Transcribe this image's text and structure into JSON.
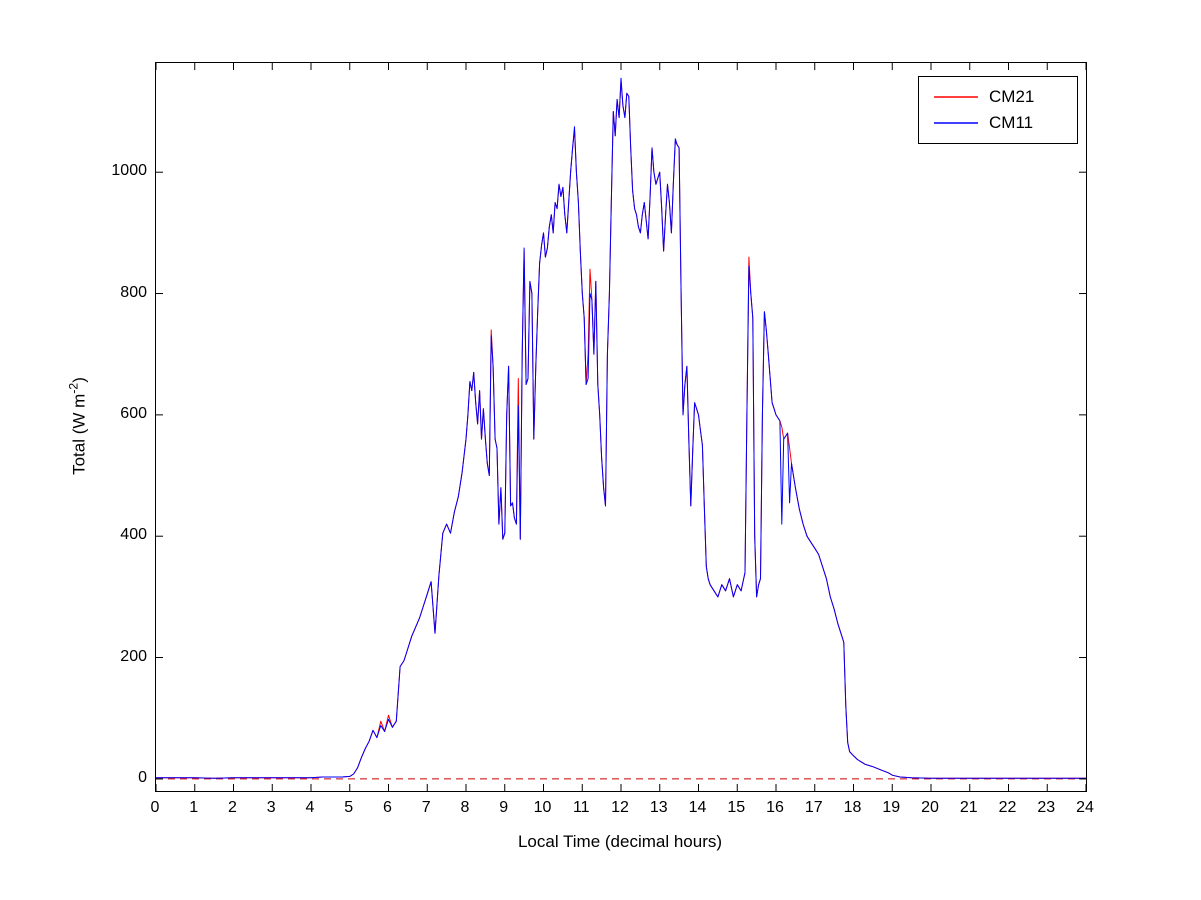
{
  "chart_data": {
    "type": "line",
    "title": "",
    "xlabel": "Local Time (decimal hours)",
    "ylabel": "Total (W m⁻²)",
    "ylabel_parts": {
      "prefix": "Total (W m",
      "sup": "-2",
      "suffix": ")"
    },
    "xlim": [
      0,
      24
    ],
    "ylim": [
      -20,
      1180
    ],
    "xticks": [
      0,
      1,
      2,
      3,
      4,
      5,
      6,
      7,
      8,
      9,
      10,
      11,
      12,
      13,
      14,
      15,
      16,
      17,
      18,
      19,
      20,
      21,
      22,
      23,
      24
    ],
    "yticks": [
      0,
      200,
      400,
      600,
      800,
      1000
    ],
    "grid": false,
    "legend_position": "top-right",
    "frame_color": "#000000",
    "x": [
      0,
      0.5,
      1,
      1.5,
      2,
      2.5,
      3,
      3.5,
      4,
      4.3,
      4.6,
      4.8,
      5,
      5.1,
      5.2,
      5.3,
      5.4,
      5.5,
      5.6,
      5.7,
      5.8,
      5.9,
      6,
      6.1,
      6.2,
      6.3,
      6.4,
      6.5,
      6.6,
      6.7,
      6.8,
      6.9,
      7,
      7.1,
      7.2,
      7.3,
      7.4,
      7.5,
      7.6,
      7.7,
      7.8,
      7.9,
      8,
      8.05,
      8.1,
      8.15,
      8.2,
      8.25,
      8.3,
      8.35,
      8.4,
      8.45,
      8.5,
      8.55,
      8.6,
      8.65,
      8.7,
      8.75,
      8.8,
      8.85,
      8.9,
      8.95,
      9,
      9.05,
      9.1,
      9.15,
      9.2,
      9.25,
      9.3,
      9.35,
      9.4,
      9.45,
      9.5,
      9.55,
      9.6,
      9.65,
      9.7,
      9.75,
      9.8,
      9.85,
      9.9,
      9.95,
      10,
      10.05,
      10.1,
      10.15,
      10.2,
      10.25,
      10.3,
      10.35,
      10.4,
      10.45,
      10.5,
      10.55,
      10.6,
      10.65,
      10.7,
      10.75,
      10.8,
      10.85,
      10.9,
      10.95,
      11,
      11.05,
      11.1,
      11.15,
      11.2,
      11.25,
      11.3,
      11.35,
      11.4,
      11.45,
      11.5,
      11.55,
      11.6,
      11.65,
      11.7,
      11.75,
      11.8,
      11.85,
      11.9,
      11.95,
      12,
      12.05,
      12.1,
      12.15,
      12.2,
      12.25,
      12.3,
      12.35,
      12.4,
      12.45,
      12.5,
      12.55,
      12.6,
      12.65,
      12.7,
      12.75,
      12.8,
      12.85,
      12.9,
      12.95,
      13,
      13.05,
      13.1,
      13.15,
      13.2,
      13.25,
      13.3,
      13.35,
      13.4,
      13.45,
      13.5,
      13.55,
      13.6,
      13.65,
      13.7,
      13.75,
      13.8,
      13.85,
      13.9,
      13.95,
      14,
      14.05,
      14.1,
      14.15,
      14.2,
      14.25,
      14.3,
      14.35,
      14.4,
      14.45,
      14.5,
      14.6,
      14.7,
      14.8,
      14.9,
      15,
      15.1,
      15.2,
      15.25,
      15.3,
      15.35,
      15.4,
      15.45,
      15.5,
      15.55,
      15.6,
      15.65,
      15.7,
      15.75,
      15.8,
      15.85,
      15.9,
      15.95,
      16,
      16.1,
      16.15,
      16.2,
      16.25,
      16.3,
      16.35,
      16.4,
      16.5,
      16.6,
      16.7,
      16.8,
      16.9,
      17,
      17.1,
      17.2,
      17.3,
      17.4,
      17.5,
      17.6,
      17.7,
      17.75,
      17.8,
      17.85,
      17.9,
      18,
      18.1,
      18.2,
      18.3,
      18.4,
      18.5,
      18.7,
      18.9,
      19,
      19.2,
      19.5,
      20,
      20.5,
      21,
      21.5,
      22,
      22.5,
      23,
      23.5,
      24
    ],
    "series": [
      {
        "name": "CM21",
        "color": "#ff0000",
        "values": [
          2,
          2,
          2,
          1,
          2,
          2,
          2,
          2,
          2,
          3,
          3,
          3,
          4,
          8,
          18,
          35,
          50,
          62,
          80,
          68,
          95,
          78,
          105,
          85,
          95,
          185,
          195,
          215,
          235,
          250,
          265,
          285,
          305,
          325,
          240,
          335,
          405,
          420,
          405,
          440,
          465,
          505,
          560,
          600,
          655,
          640,
          670,
          620,
          585,
          640,
          560,
          610,
          560,
          520,
          500,
          740,
          680,
          560,
          545,
          420,
          480,
          395,
          405,
          600,
          680,
          450,
          455,
          430,
          420,
          660,
          395,
          700,
          870,
          650,
          660,
          820,
          800,
          560,
          680,
          770,
          850,
          880,
          900,
          860,
          875,
          910,
          930,
          900,
          950,
          940,
          980,
          960,
          975,
          930,
          900,
          950,
          1000,
          1040,
          1070,
          1000,
          950,
          870,
          800,
          760,
          650,
          700,
          840,
          790,
          700,
          820,
          650,
          600,
          530,
          480,
          450,
          700,
          800,
          950,
          1100,
          1060,
          1120,
          1090,
          1150,
          1110,
          1090,
          1130,
          1125,
          1040,
          970,
          940,
          930,
          910,
          900,
          930,
          950,
          920,
          890,
          960,
          1040,
          1000,
          980,
          990,
          1000,
          940,
          870,
          930,
          980,
          950,
          900,
          980,
          1050,
          1045,
          1040,
          800,
          600,
          650,
          680,
          560,
          450,
          540,
          620,
          610,
          600,
          575,
          550,
          450,
          350,
          330,
          320,
          315,
          310,
          305,
          300,
          320,
          310,
          330,
          300,
          320,
          310,
          340,
          600,
          860,
          800,
          760,
          400,
          300,
          320,
          330,
          600,
          770,
          740,
          700,
          660,
          620,
          610,
          600,
          590,
          580,
          560,
          565,
          570,
          545,
          520,
          480,
          445,
          420,
          400,
          390,
          380,
          370,
          350,
          330,
          300,
          280,
          255,
          235,
          225,
          120,
          60,
          45,
          38,
          32,
          28,
          24,
          22,
          20,
          15,
          10,
          6,
          3,
          2,
          1,
          1,
          1,
          1,
          1,
          1,
          1,
          1,
          1
        ]
      },
      {
        "name": "CM11",
        "color": "#0000ff",
        "values": [
          2,
          2,
          2,
          1,
          2,
          2,
          2,
          2,
          2,
          3,
          3,
          3,
          4,
          8,
          18,
          35,
          50,
          62,
          80,
          68,
          88,
          78,
          98,
          85,
          95,
          185,
          195,
          215,
          235,
          250,
          265,
          285,
          305,
          325,
          240,
          335,
          405,
          420,
          405,
          440,
          465,
          505,
          560,
          600,
          655,
          640,
          670,
          620,
          585,
          640,
          560,
          610,
          560,
          520,
          500,
          730,
          680,
          560,
          545,
          420,
          480,
          395,
          405,
          600,
          680,
          450,
          455,
          430,
          420,
          615,
          395,
          700,
          875,
          650,
          660,
          820,
          800,
          560,
          680,
          770,
          850,
          880,
          900,
          860,
          875,
          910,
          930,
          900,
          950,
          940,
          980,
          960,
          975,
          930,
          900,
          950,
          1000,
          1040,
          1075,
          1000,
          950,
          870,
          800,
          760,
          650,
          660,
          800,
          790,
          700,
          820,
          650,
          600,
          530,
          480,
          450,
          700,
          800,
          950,
          1100,
          1060,
          1120,
          1090,
          1155,
          1110,
          1090,
          1130,
          1125,
          1040,
          970,
          940,
          930,
          910,
          900,
          930,
          950,
          920,
          890,
          960,
          1040,
          1000,
          980,
          990,
          1000,
          940,
          870,
          930,
          980,
          950,
          900,
          980,
          1055,
          1045,
          1040,
          800,
          600,
          650,
          680,
          560,
          450,
          540,
          620,
          610,
          600,
          575,
          550,
          450,
          350,
          330,
          320,
          315,
          310,
          305,
          300,
          320,
          310,
          330,
          300,
          320,
          310,
          340,
          600,
          845,
          800,
          760,
          400,
          300,
          320,
          330,
          600,
          770,
          740,
          700,
          660,
          620,
          610,
          600,
          590,
          420,
          560,
          565,
          570,
          455,
          520,
          480,
          445,
          420,
          400,
          390,
          380,
          370,
          350,
          330,
          300,
          280,
          255,
          235,
          225,
          120,
          60,
          45,
          38,
          32,
          28,
          24,
          22,
          20,
          15,
          10,
          6,
          3,
          2,
          1,
          1,
          1,
          1,
          1,
          1,
          1,
          1,
          1
        ]
      }
    ],
    "zero_line": {
      "y": 0,
      "color": "#cc0000",
      "style": "dashed"
    }
  }
}
